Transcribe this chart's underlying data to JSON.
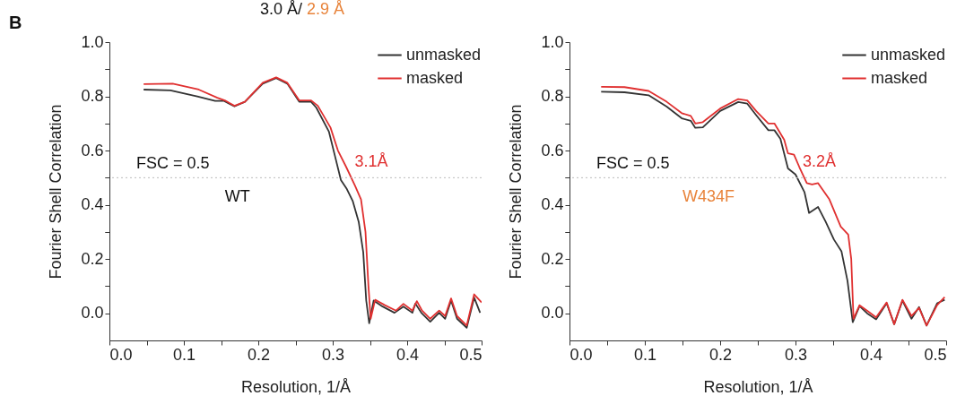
{
  "chart_data": [
    {
      "type": "line",
      "title": "B",
      "subtitle": "WT",
      "xlabel": "Resolution, 1/Å",
      "ylabel": "Fourier Shell Correlation",
      "xlim": [
        0,
        0.5
      ],
      "ylim": [
        -0.1,
        1.0
      ],
      "xticks": [
        {
          "value": 0,
          "label": "0.0"
        },
        {
          "value": 0.05,
          "label": null
        },
        {
          "value": 0.1,
          "label": "0.1"
        },
        {
          "value": 0.15,
          "label": null
        },
        {
          "value": 0.2,
          "label": "0.2"
        },
        {
          "value": 0.25,
          "label": null
        },
        {
          "value": 0.3,
          "label": "0.3"
        },
        {
          "value": 0.35,
          "label": null
        },
        {
          "value": 0.4,
          "label": "0.4"
        },
        {
          "value": 0.45,
          "label": null
        },
        {
          "value": 0.5,
          "label": "0.5"
        }
      ],
      "yticks": [
        {
          "value": 0,
          "label": "0.0"
        },
        {
          "value": 0.1,
          "label": null
        },
        {
          "value": 0.2,
          "label": "0.2"
        },
        {
          "value": 0.3,
          "label": null
        },
        {
          "value": 0.4,
          "label": "0.4"
        },
        {
          "value": 0.5,
          "label": null
        },
        {
          "value": 0.6,
          "label": "0.6"
        },
        {
          "value": 0.7,
          "label": null
        },
        {
          "value": 0.8,
          "label": "0.8"
        },
        {
          "value": 0.9,
          "label": null
        },
        {
          "value": 1.0,
          "label": "1.0"
        }
      ],
      "legend": "top right",
      "grid": false,
      "line_style": "solid",
      "ref_lines": [
        {
          "axis": "y",
          "value": 0.5,
          "label": "FSC = 0.5",
          "color": "#bbbbbb",
          "line_style": "dotted"
        }
      ],
      "annotations": [
        "3.0 Å/ 2.9 Å",
        {
          "text": "3.1Å",
          "x": 0.32,
          "y": 0.5
        }
      ],
      "series": [
        {
          "name": "unmasked",
          "color": "#333333",
          "x": [
            0.046,
            0.082,
            0.118,
            0.142,
            0.154,
            0.168,
            0.182,
            0.206,
            0.224,
            0.239,
            0.255,
            0.271,
            0.278,
            0.295,
            0.303,
            0.311,
            0.319,
            0.327,
            0.335,
            0.341,
            0.345,
            0.349,
            0.355,
            0.367,
            0.383,
            0.395,
            0.407,
            0.411,
            0.419,
            0.431,
            0.443,
            0.451,
            0.459,
            0.467,
            0.48,
            0.49,
            0.498
          ],
          "values": [
            0.825,
            0.822,
            0.8,
            0.783,
            0.783,
            0.763,
            0.78,
            0.847,
            0.867,
            0.847,
            0.78,
            0.78,
            0.758,
            0.669,
            0.58,
            0.491,
            0.458,
            0.413,
            0.336,
            0.225,
            0.047,
            -0.037,
            0.047,
            0.025,
            0.002,
            0.025,
            0.002,
            0.036,
            0.002,
            -0.031,
            0.002,
            -0.02,
            0.047,
            -0.02,
            -0.053,
            0.058,
            0.002
          ]
        },
        {
          "name": "masked",
          "color": "#e03030",
          "x": [
            0.046,
            0.085,
            0.12,
            0.145,
            0.155,
            0.168,
            0.182,
            0.206,
            0.224,
            0.239,
            0.255,
            0.271,
            0.28,
            0.297,
            0.307,
            0.318,
            0.33,
            0.338,
            0.344,
            0.348,
            0.351,
            0.357,
            0.37,
            0.385,
            0.395,
            0.407,
            0.413,
            0.42,
            0.431,
            0.443,
            0.451,
            0.459,
            0.467,
            0.48,
            0.49,
            0.5
          ],
          "values": [
            0.845,
            0.847,
            0.825,
            0.795,
            0.785,
            0.765,
            0.78,
            0.85,
            0.87,
            0.85,
            0.785,
            0.785,
            0.765,
            0.685,
            0.6,
            0.54,
            0.47,
            0.42,
            0.3,
            0.1,
            -0.02,
            0.05,
            0.03,
            0.01,
            0.035,
            0.01,
            0.045,
            0.01,
            -0.02,
            0.01,
            -0.01,
            0.055,
            -0.01,
            -0.045,
            0.07,
            0.04
          ]
        }
      ]
    },
    {
      "type": "line",
      "subtitle": "W434F",
      "xlabel": "Resolution, 1/Å",
      "ylabel": "Fourier Shell Correlation",
      "xlim": [
        0,
        0.5
      ],
      "ylim": [
        -0.1,
        1.0
      ],
      "xticks": [
        {
          "value": 0,
          "label": "0.0"
        },
        {
          "value": 0.05,
          "label": null
        },
        {
          "value": 0.1,
          "label": "0.1"
        },
        {
          "value": 0.15,
          "label": null
        },
        {
          "value": 0.2,
          "label": "0.2"
        },
        {
          "value": 0.25,
          "label": null
        },
        {
          "value": 0.3,
          "label": "0.3"
        },
        {
          "value": 0.35,
          "label": null
        },
        {
          "value": 0.4,
          "label": "0.4"
        },
        {
          "value": 0.45,
          "label": null
        },
        {
          "value": 0.5,
          "label": "0.5"
        }
      ],
      "yticks": [
        {
          "value": 0,
          "label": "0.0"
        },
        {
          "value": 0.1,
          "label": null
        },
        {
          "value": 0.2,
          "label": "0.2"
        },
        {
          "value": 0.3,
          "label": null
        },
        {
          "value": 0.4,
          "label": "0.4"
        },
        {
          "value": 0.5,
          "label": null
        },
        {
          "value": 0.6,
          "label": "0.6"
        },
        {
          "value": 0.7,
          "label": null
        },
        {
          "value": 0.8,
          "label": "0.8"
        },
        {
          "value": 0.9,
          "label": null
        },
        {
          "value": 1.0,
          "label": "1.0"
        }
      ],
      "legend": "top right",
      "grid": false,
      "line_style": "solid",
      "ref_lines": [
        {
          "axis": "y",
          "value": 0.5,
          "label": "FSC = 0.5",
          "color": "#bbbbbb",
          "line_style": "dotted"
        }
      ],
      "annotations": [
        {
          "text": "3.2Å",
          "x": 0.3,
          "y": 0.5
        }
      ],
      "series": [
        {
          "name": "unmasked",
          "color": "#333333",
          "x": [
            0.042,
            0.073,
            0.105,
            0.129,
            0.149,
            0.161,
            0.167,
            0.177,
            0.2,
            0.224,
            0.236,
            0.248,
            0.264,
            0.272,
            0.28,
            0.29,
            0.3,
            0.312,
            0.318,
            0.33,
            0.34,
            0.351,
            0.361,
            0.369,
            0.376,
            0.385,
            0.395,
            0.407,
            0.421,
            0.431,
            0.442,
            0.454,
            0.464,
            0.474,
            0.488,
            0.498
          ],
          "values": [
            0.817,
            0.815,
            0.804,
            0.762,
            0.719,
            0.71,
            0.684,
            0.686,
            0.746,
            0.779,
            0.773,
            0.73,
            0.675,
            0.675,
            0.643,
            0.534,
            0.512,
            0.446,
            0.37,
            0.392,
            0.338,
            0.272,
            0.229,
            0.12,
            -0.033,
            0.027,
            0.0,
            -0.022,
            0.037,
            -0.04,
            0.047,
            -0.02,
            0.023,
            -0.045,
            0.037,
            0.05
          ]
        },
        {
          "name": "masked",
          "color": "#e03030",
          "x": [
            0.042,
            0.073,
            0.105,
            0.129,
            0.149,
            0.161,
            0.167,
            0.177,
            0.2,
            0.224,
            0.236,
            0.248,
            0.264,
            0.272,
            0.285,
            0.29,
            0.298,
            0.305,
            0.315,
            0.322,
            0.33,
            0.345,
            0.36,
            0.37,
            0.374,
            0.377,
            0.385,
            0.395,
            0.407,
            0.421,
            0.431,
            0.442,
            0.454,
            0.464,
            0.474,
            0.488,
            0.498
          ],
          "values": [
            0.835,
            0.834,
            0.82,
            0.78,
            0.738,
            0.728,
            0.7,
            0.705,
            0.755,
            0.79,
            0.785,
            0.745,
            0.7,
            0.7,
            0.64,
            0.59,
            0.585,
            0.54,
            0.48,
            0.475,
            0.48,
            0.42,
            0.32,
            0.29,
            0.2,
            -0.02,
            0.03,
            0.01,
            -0.015,
            0.04,
            -0.04,
            0.05,
            -0.01,
            0.02,
            -0.045,
            0.03,
            0.06
          ]
        }
      ]
    }
  ]
}
